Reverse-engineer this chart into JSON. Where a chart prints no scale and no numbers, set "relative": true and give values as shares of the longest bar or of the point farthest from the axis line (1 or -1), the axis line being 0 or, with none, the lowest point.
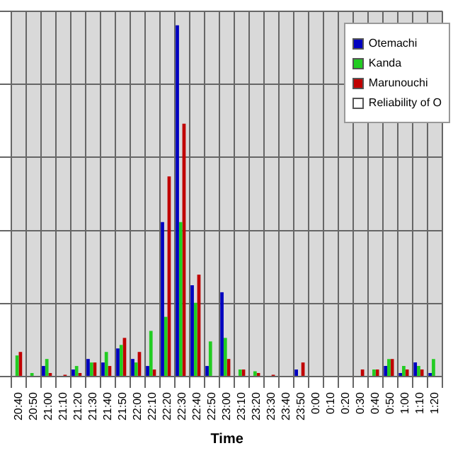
{
  "chart_data": {
    "type": "bar",
    "xlabel": "Time",
    "relative": true,
    "grid": true,
    "legend": "top right",
    "categories": [
      "20:40",
      "20:50",
      "21:00",
      "21:10",
      "21:20",
      "21:30",
      "21:40",
      "21:50",
      "22:00",
      "22:10",
      "22:20",
      "22:30",
      "22:40",
      "22:50",
      "23:00",
      "23:10",
      "23:20",
      "23:30",
      "23:40",
      "23:50",
      "0:00",
      "0:10",
      "0:20",
      "0:30",
      "0:40",
      "0:50",
      "1:00",
      "1:10",
      "1:20"
    ],
    "series": [
      {
        "name": "Otemachi",
        "color": "#0000c0",
        "values": [
          0,
          0,
          0.03,
          0,
          0.02,
          0.05,
          0.04,
          0.08,
          0.05,
          0.03,
          0.44,
          1,
          0.26,
          0.03,
          0.24,
          0,
          0,
          0,
          0,
          0.02,
          0,
          0,
          0,
          0,
          0,
          0.03,
          0.01,
          0.04,
          0.01
        ]
      },
      {
        "name": "Kanda",
        "color": "#22cc22",
        "values": [
          0.06,
          0.01,
          0.05,
          0,
          0.03,
          0.04,
          0.07,
          0.09,
          0.04,
          0.13,
          0.17,
          0.44,
          0.21,
          0.1,
          0.11,
          0.02,
          0.015,
          0,
          0,
          0,
          0,
          0,
          0,
          0,
          0.02,
          0.05,
          0.03,
          0.03,
          0.05
        ]
      },
      {
        "name": "Marunouchi",
        "color": "#c00000",
        "values": [
          0.07,
          0,
          0.01,
          0.005,
          0.01,
          0.04,
          0.03,
          0.11,
          0.07,
          0.02,
          0.57,
          0.72,
          0.29,
          0,
          0.05,
          0.02,
          0.01,
          0.005,
          0,
          0.04,
          0,
          0,
          0,
          0.02,
          0.02,
          0.05,
          0.02,
          0.02,
          null
        ]
      },
      {
        "name": "Reliability of O",
        "color": "#ffffff",
        "values": [
          null,
          null,
          null,
          null,
          null,
          null,
          null,
          null,
          null,
          null,
          null,
          null,
          null,
          null,
          null,
          null,
          null,
          null,
          null,
          null,
          null,
          null,
          null,
          null,
          null,
          null,
          null,
          null,
          null
        ]
      }
    ]
  }
}
